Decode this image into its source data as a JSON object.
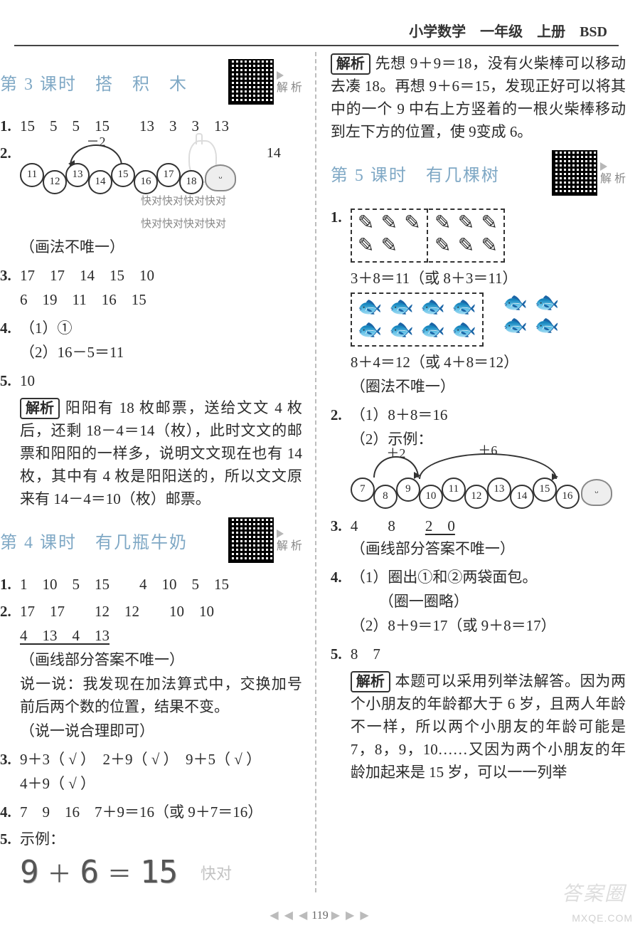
{
  "doc": {
    "page_number": "119"
  },
  "header": {
    "subject": "小学数学",
    "grade": "一年级",
    "volume": "上册",
    "edition": "BSD"
  },
  "qr_side_label": "解\n析",
  "s3": {
    "title": "第 3 课时　搭　积　木",
    "q1": "15　5　5　15　　13　3　3　13",
    "q2_label": "－2",
    "q2_right": "14",
    "q2_beads": [
      "11",
      "12",
      "13",
      "14",
      "15",
      "16",
      "17",
      "18"
    ],
    "q2_paren": "（画法不唯一）",
    "q2_wm1": "快对快对快对快对",
    "q2_wm2": "快对快对快对快对",
    "q3_line1": "17　17　14　15　10",
    "q3_line2": "6　19　11　16　15",
    "q4_line1": "（1）①",
    "q4_line2": "（2）16－5＝11",
    "q5": "10",
    "q5_analysis_tag": "解析",
    "q5_analysis": "阳阳有 18 枚邮票，送给文文 4 枚后，还剩 18－4＝14（枚），此时文文的邮票和阳阳的一样多，说明文文现在也有 14 枚，其中有 4 枚是阳阳送的，所以文文原来有 14－4＝10（枚）邮票。"
  },
  "s4": {
    "title": "第 4 课时　有几瓶牛奶",
    "q1": "1　10　5　15　　4　10　5　15",
    "q2_top": "17　17　　12　12　　10　10",
    "q2_under": "4　13　4　13",
    "q2_paren": "（画线部分答案不唯一）",
    "q2_say": "说一说：我发现在加法算式中，交换加号前后两个数的位置，结果不变。",
    "q2_say_paren": "（说一说合理即可）",
    "q3_line1": "9＋3（ √ ）　2＋9（ √ ）　9＋5（ √ ）",
    "q3_line2": "4＋9（ √ ）",
    "q4": "7　9　16　7＋9＝16（或 9＋7＝16）",
    "q5_prefix": "示例：",
    "q5_eq": {
      "a": "9",
      "op1": "＋",
      "b": "6",
      "op2": "＝",
      "c": "15"
    },
    "top_analysis_tag": "解析",
    "top_analysis": "先想 9＋9＝18，没有火柴棒可以移动去凑 18。再想 9＋6＝15，发现正好可以将其中的一个 9 中右上方竖着的一根火柴棒移动到左下方的位置，使 9变成 6。"
  },
  "s5": {
    "title": "第 5 课时　有几棵树",
    "q1_eq1": "3＋8＝11（或 8＋3＝11）",
    "q1_eq2": "8＋4＝12（或 4＋8＝12）",
    "q1_paren": "（圈法不唯一）",
    "q2_line1": "（1）8＋8＝16",
    "q2_line2": "（2）示例：",
    "q2_arc1": "＋2",
    "q2_arc2": "＋6",
    "q2_beads": [
      "7",
      "8",
      "9",
      "10",
      "11",
      "12",
      "13",
      "14",
      "15",
      "16"
    ],
    "q3": "4　　8　　",
    "q3_under": "2　0",
    "q3_paren": "（画线部分答案不唯一）",
    "q4_line1": "（1）圈出①和②两袋面包。",
    "q4_line1b": "（圈一圈略）",
    "q4_line2": "（2）8＋9＝17（或 9＋8＝17）",
    "q5": "8　7",
    "q5_analysis_tag": "解析",
    "q5_analysis": "本题可以采用列举法解答。因为两个小朋友的年龄都大于 6 岁，且两人年龄不一样，所以两个小朋友的年龄可能是 7，8，9，10……又因为两个小朋友的年龄加起来是 15 岁，可以一一列举"
  },
  "watermarks": {
    "brand": "答案圈",
    "site": "MXQE.COM",
    "kd": "快对"
  }
}
